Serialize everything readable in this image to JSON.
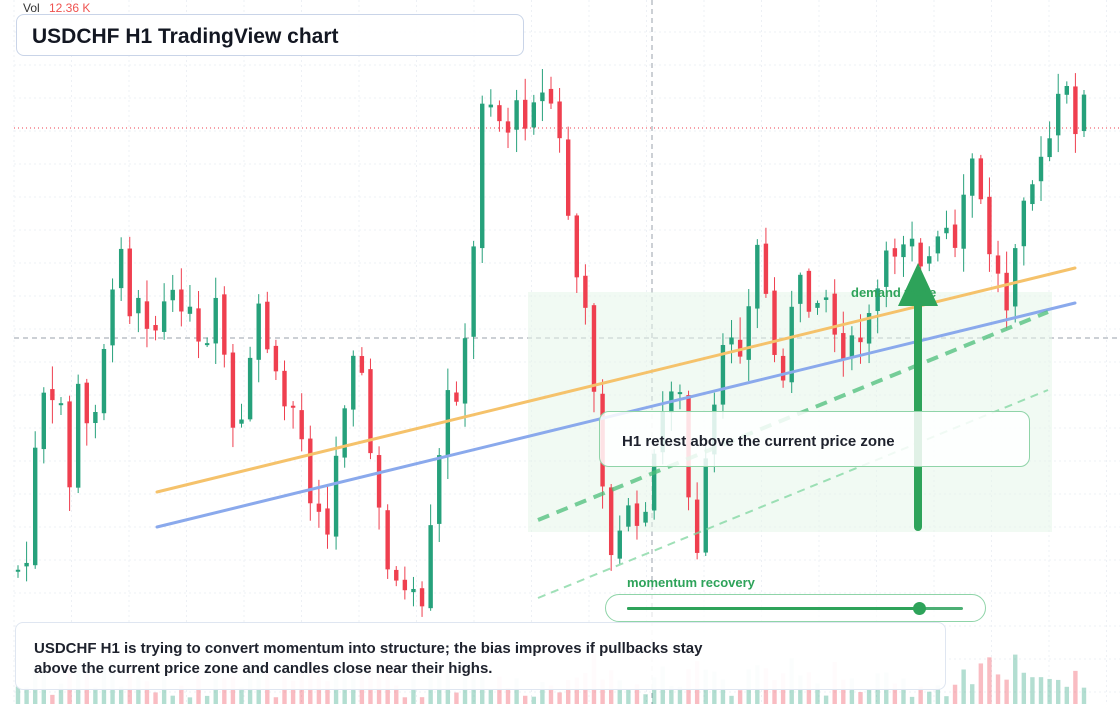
{
  "header": {
    "vol_label": "Vol",
    "vol_value": "12.36 K",
    "title": "USDCHF H1 TradingView chart"
  },
  "annotations": {
    "zone_note": "H1 retest above the current price zone",
    "demand_label": "demand trade",
    "momentum_label": "momentum recovery",
    "momentum_level": 0.87,
    "summary": "USDCHF H1 is trying to convert momentum into structure; the bias improves if pullbacks stay above the current price zone and candles close near their highs."
  },
  "colors": {
    "up": "#26a17b",
    "down": "#ef3f4f",
    "trend_orange": "#f5c26b",
    "trend_blue": "#8aa9ec",
    "accent_green": "#2ea35a",
    "zone_fill": "#e6f6ea"
  },
  "chart_data": {
    "type": "candlestick",
    "title": "USDCHF H1 TradingView chart",
    "timeframe": "H1",
    "bars": 125,
    "price_axis": "hidden",
    "grid": true,
    "price_seed": [
      570,
      590,
      515,
      430,
      400,
      395,
      425,
      400,
      505,
      380,
      400,
      430,
      410,
      380,
      320,
      300,
      230,
      250,
      330,
      290,
      310,
      325,
      330,
      305,
      300,
      305,
      298,
      310,
      335,
      360,
      350,
      300,
      330,
      365,
      430,
      450,
      400,
      360,
      300,
      330,
      360,
      385,
      405,
      400,
      410,
      440,
      500,
      480,
      510,
      540,
      480,
      430,
      390,
      340,
      360,
      400,
      460,
      500,
      560,
      580,
      570,
      600,
      590,
      605,
      620,
      560,
      500,
      450,
      400,
      380,
      400,
      340,
      290,
      120,
      80,
      100,
      110,
      140,
      120,
      110,
      130,
      100,
      90,
      95,
      105,
      100,
      150,
      200,
      260,
      290,
      320,
      360,
      430,
      500,
      560,
      560,
      500,
      500,
      540,
      520,
      480,
      460,
      420,
      390,
      375,
      400,
      480,
      540,
      570,
      470,
      430,
      380,
      350,
      330,
      330,
      360,
      300,
      250,
      240,
      330,
      360,
      380,
      340,
      300,
      285,
      300,
      320,
      280,
      290,
      330,
      340,
      350,
      350,
      340,
      340,
      320,
      300,
      270,
      260,
      250,
      240,
      230,
      230,
      260,
      250,
      270,
      240,
      230,
      240,
      270,
      200,
      150,
      180,
      220,
      250,
      270,
      290,
      310,
      240,
      195,
      180,
      180,
      170,
      150,
      130,
      100,
      80,
      130,
      120,
      100
    ]
  }
}
